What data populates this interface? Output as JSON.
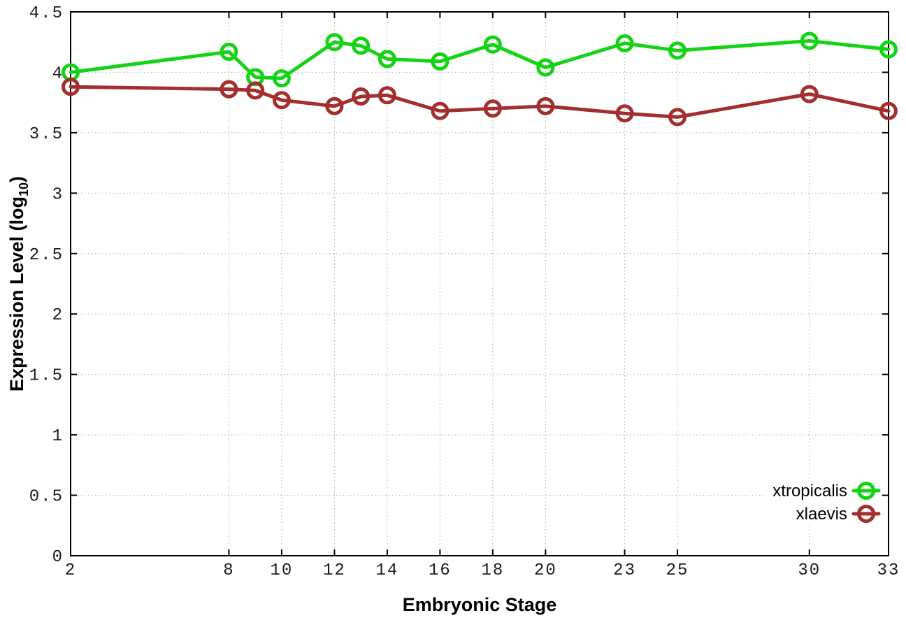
{
  "chart_data": {
    "type": "line",
    "title": "",
    "xlabel": "Embryonic Stage",
    "ylabel": {
      "prefix": "Expression Level (log",
      "sub": "10",
      "suffix": ")"
    },
    "xlim": [
      2,
      33
    ],
    "ylim": [
      0,
      4.5
    ],
    "grid": true,
    "grid_style": "dotted",
    "legend_position": "bottom-right",
    "x_ticks": [
      2,
      8,
      10,
      12,
      14,
      16,
      18,
      20,
      23,
      25,
      30,
      33
    ],
    "x_tick_labels": [
      "2",
      "8",
      "10",
      "12",
      "14",
      "16",
      "18",
      "20",
      "23",
      "25",
      "30",
      "33"
    ],
    "y_ticks": [
      0,
      0.5,
      1,
      1.5,
      2,
      2.5,
      3,
      3.5,
      4,
      4.5
    ],
    "y_tick_labels": [
      "0",
      "0.5",
      "1",
      "1.5",
      "2",
      "2.5",
      "3",
      "3.5",
      "4",
      "4.5"
    ],
    "x": [
      2,
      8,
      9,
      10,
      12,
      13,
      14,
      16,
      18,
      20,
      23,
      25,
      30,
      33
    ],
    "series": [
      {
        "name": "xtropicalis",
        "color": "#14d314",
        "marker": "open-circle",
        "values": [
          4.0,
          4.17,
          3.96,
          3.95,
          4.25,
          4.22,
          4.11,
          4.09,
          4.23,
          4.04,
          4.24,
          4.18,
          4.26,
          4.19
        ]
      },
      {
        "name": "xlaevis",
        "color": "#a32e2e",
        "marker": "open-circle",
        "values": [
          3.88,
          3.86,
          3.85,
          3.77,
          3.72,
          3.8,
          3.81,
          3.68,
          3.7,
          3.72,
          3.66,
          3.63,
          3.82,
          3.68
        ]
      }
    ]
  },
  "style": {
    "background": "#ffffff",
    "border_color": "#000000",
    "grid_color": "#b3b3b3",
    "tick_color": "#000000",
    "tick_label_color": "#1c1c1c"
  }
}
